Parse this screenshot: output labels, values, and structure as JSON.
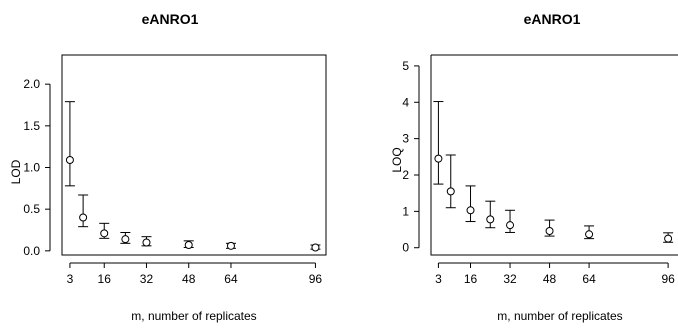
{
  "chart_data": [
    {
      "type": "scatter",
      "title": "eANRO1",
      "xlabel": "m, number of replicates",
      "ylabel": "LOD",
      "x_ticks": [
        3,
        16,
        32,
        48,
        64,
        96
      ],
      "y_ticks": [
        0.0,
        0.5,
        1.0,
        1.5,
        2.0
      ],
      "y_tick_labels": [
        "0.0",
        "0.5",
        "1.0",
        "1.5",
        "2.0"
      ],
      "xlim": [
        0,
        100
      ],
      "ylim": [
        -0.05,
        2.35
      ],
      "x": [
        3,
        8,
        16,
        24,
        32,
        48,
        64,
        96
      ],
      "y": [
        1.09,
        0.4,
        0.21,
        0.14,
        0.1,
        0.07,
        0.06,
        0.04
      ],
      "err_low": [
        0.78,
        0.29,
        0.15,
        0.09,
        0.06,
        0.04,
        0.03,
        0.02
      ],
      "err_high": [
        1.79,
        0.67,
        0.33,
        0.22,
        0.17,
        0.12,
        0.09,
        0.07
      ]
    },
    {
      "type": "scatter",
      "title": "eANRO1",
      "xlabel": "m, number of replicates",
      "ylabel": "LOQ",
      "x_ticks": [
        3,
        16,
        32,
        48,
        64,
        96
      ],
      "x_tick_labels": [
        "3",
        "16",
        "32",
        "48",
        "64",
        "96"
      ],
      "y_ticks": [
        0,
        1,
        2,
        3,
        4,
        5
      ],
      "y_tick_labels": [
        "0",
        "1",
        "2",
        "3",
        "4",
        "5"
      ],
      "xlim": [
        0,
        100
      ],
      "ylim": [
        -0.2,
        5.3
      ],
      "x": [
        3,
        8,
        16,
        24,
        32,
        48,
        64,
        96
      ],
      "y": [
        2.45,
        1.55,
        1.03,
        0.78,
        0.62,
        0.46,
        0.37,
        0.25
      ],
      "err_low": [
        1.75,
        1.1,
        0.72,
        0.55,
        0.42,
        0.32,
        0.25,
        0.15
      ],
      "err_high": [
        4.02,
        2.55,
        1.7,
        1.28,
        1.03,
        0.76,
        0.6,
        0.41
      ]
    }
  ]
}
